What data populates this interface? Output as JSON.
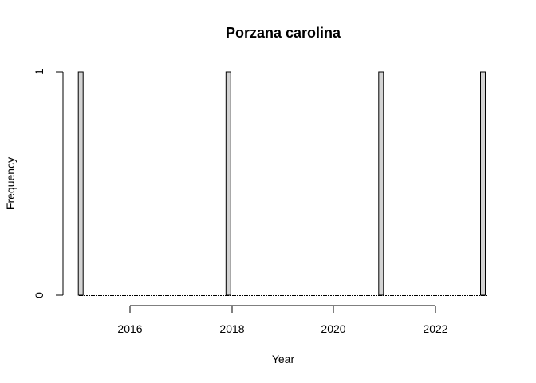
{
  "chart_data": {
    "type": "bar",
    "title": "Porzana carolina",
    "xlabel": "Year",
    "ylabel": "Frequency",
    "x_ticks": [
      "2016",
      "2018",
      "2020",
      "2022"
    ],
    "y_ticks": [
      "0",
      "1"
    ],
    "xlim": [
      2015,
      2023
    ],
    "ylim": [
      0,
      1
    ],
    "bars": [
      {
        "x": 2015.0,
        "value": 1
      },
      {
        "x": 2017.9,
        "value": 1
      },
      {
        "x": 2020.9,
        "value": 1
      },
      {
        "x": 2022.9,
        "value": 1
      }
    ],
    "bar_fill": "#d3d3d3",
    "grid": false,
    "legend": "none"
  }
}
